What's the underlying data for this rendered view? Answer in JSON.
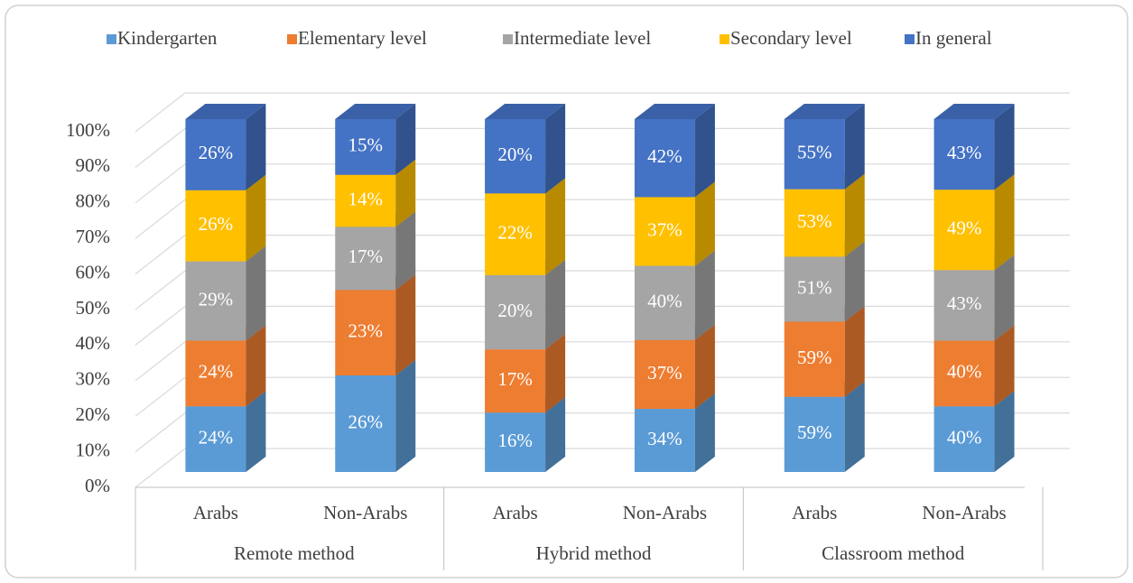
{
  "chart_data": {
    "type": "bar",
    "stacking": "percent",
    "groups": [
      "Remote method",
      "Hybrid method",
      "Classroom method"
    ],
    "categories": [
      "Arabs",
      "Non-Arabs",
      "Arabs",
      "Non-Arabs",
      "Arabs",
      "Non-Arabs"
    ],
    "series": [
      {
        "name": "Kindergarten",
        "color": "#5b9bd5",
        "values": [
          24,
          26,
          16,
          34,
          59,
          40
        ],
        "value_labels": [
          "24%",
          "26%",
          "16%",
          "34%",
          "59%",
          "40%"
        ]
      },
      {
        "name": "Elementary level",
        "color": "#ed7d31",
        "values": [
          24,
          23,
          17,
          37,
          59,
          40
        ],
        "value_labels": [
          "24%",
          "23%",
          "17%",
          "37%",
          "59%",
          "40%"
        ]
      },
      {
        "name": "Intermediate level",
        "color": "#a5a5a5",
        "values": [
          29,
          17,
          20,
          40,
          51,
          43
        ],
        "value_labels": [
          "29%",
          "17%",
          "20%",
          "40%",
          "51%",
          "43%"
        ]
      },
      {
        "name": "Secondary level",
        "color": "#ffc000",
        "values": [
          26,
          14,
          22,
          37,
          53,
          49
        ],
        "value_labels": [
          "26%",
          "14%",
          "22%",
          "37%",
          "53%",
          "49%"
        ]
      },
      {
        "name": "In general",
        "color": "#4472c4",
        "values": [
          26,
          15,
          20,
          42,
          55,
          43
        ],
        "value_labels": [
          "26%",
          "15%",
          "20%",
          "42%",
          "55%",
          "43%"
        ]
      }
    ],
    "ylim": [
      0,
      100
    ],
    "yticks": [
      {
        "value": 0,
        "label": "0%"
      },
      {
        "value": 10,
        "label": "10%"
      },
      {
        "value": 20,
        "label": "20%"
      },
      {
        "value": 30,
        "label": "30%"
      },
      {
        "value": 40,
        "label": "40%"
      },
      {
        "value": 50,
        "label": "50%"
      },
      {
        "value": 60,
        "label": "60%"
      },
      {
        "value": 70,
        "label": "70%"
      },
      {
        "value": 80,
        "label": "80%"
      },
      {
        "value": 90,
        "label": "90%"
      },
      {
        "value": 100,
        "label": "100%"
      }
    ],
    "grid": true,
    "legend": "top"
  }
}
